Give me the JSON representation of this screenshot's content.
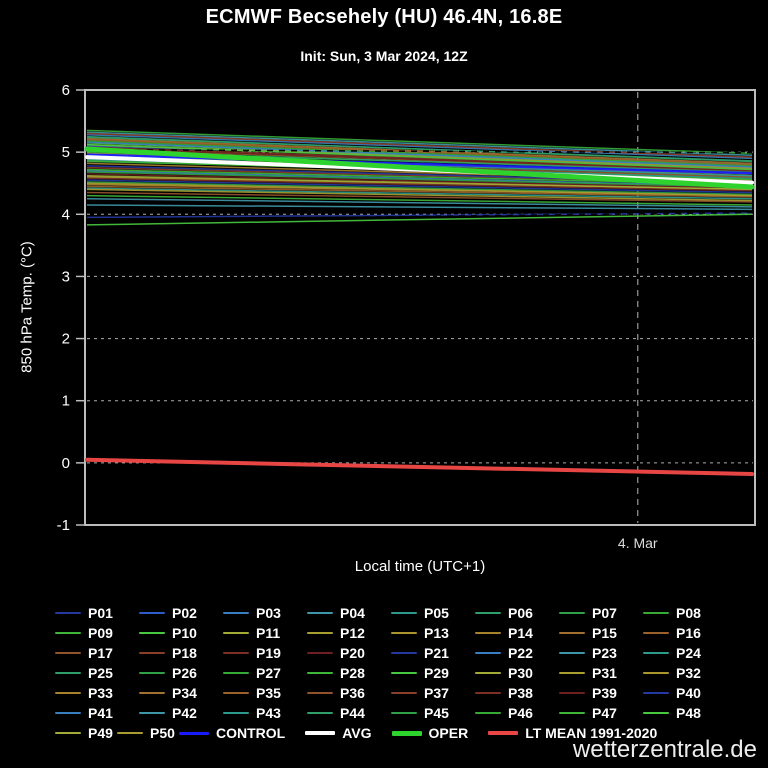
{
  "header": {
    "title": "ECMWF Becsehely (HU) 46.4N, 16.8E",
    "subtitle": "Init: Sun, 3 Mar 2024, 12Z"
  },
  "axes": {
    "xlabel": "Local time (UTC+1)",
    "ylabel": "850 hPa Temp. (°C)"
  },
  "watermark": "wetterzentrale.de",
  "colors": {
    "background": "#000000",
    "frame": "#bcbcbc",
    "grid_h": "#cccccc",
    "grid_v": "#999999",
    "text": "#ffffff",
    "xtick_text": "#dddddd"
  },
  "chart_data": {
    "type": "line",
    "title": "ECMWF Becsehely (HU) 46.4N, 16.8E",
    "subtitle": "Init: Sun, 3 Mar 2024, 12Z",
    "xlabel": "Local time (UTC+1)",
    "ylabel": "850 hPa Temp. (°C)",
    "ylim": [
      -1,
      6
    ],
    "yticks": [
      6,
      5,
      4,
      3,
      2,
      1,
      0,
      -1
    ],
    "x": [
      0,
      1
    ],
    "xticks": [
      {
        "frac": 0.825,
        "label": "4. Mar"
      }
    ],
    "grid": "dashed",
    "legend_position": "bottom",
    "series": [
      {
        "name": "P01",
        "color": "#2438a0",
        "width": 1.5,
        "values": [
          4.55,
          4.35
        ]
      },
      {
        "name": "P02",
        "color": "#2e5cc8",
        "width": 1.5,
        "values": [
          5.1,
          4.8
        ]
      },
      {
        "name": "P03",
        "color": "#3a7ec0",
        "width": 1.5,
        "values": [
          4.7,
          4.45
        ]
      },
      {
        "name": "P04",
        "color": "#3e96a8",
        "width": 1.5,
        "values": [
          5.32,
          4.95
        ]
      },
      {
        "name": "P05",
        "color": "#2e9a8e",
        "width": 1.5,
        "values": [
          4.42,
          4.25
        ]
      },
      {
        "name": "P06",
        "color": "#2f9e68",
        "width": 1.5,
        "values": [
          5.25,
          4.85
        ]
      },
      {
        "name": "P07",
        "color": "#2fa048",
        "width": 1.5,
        "values": [
          4.85,
          4.6
        ]
      },
      {
        "name": "P08",
        "color": "#36a836",
        "width": 1.5,
        "values": [
          5.0,
          4.7
        ]
      },
      {
        "name": "P09",
        "color": "#3eb438",
        "width": 1.5,
        "values": [
          4.3,
          4.15
        ]
      },
      {
        "name": "P10",
        "color": "#48c840",
        "width": 1.5,
        "values": [
          5.15,
          4.75
        ]
      },
      {
        "name": "P11",
        "color": "#a2aa38",
        "width": 1.5,
        "values": [
          4.95,
          4.65
        ]
      },
      {
        "name": "P12",
        "color": "#a89e30",
        "width": 1.5,
        "values": [
          4.6,
          4.4
        ]
      },
      {
        "name": "P13",
        "color": "#ac942e",
        "width": 1.5,
        "values": [
          5.05,
          4.7
        ]
      },
      {
        "name": "P14",
        "color": "#a8822a",
        "width": 1.5,
        "values": [
          4.48,
          4.3
        ]
      },
      {
        "name": "P15",
        "color": "#a27030",
        "width": 1.5,
        "values": [
          4.9,
          4.55
        ]
      },
      {
        "name": "P16",
        "color": "#9c602a",
        "width": 1.5,
        "values": [
          5.2,
          4.8
        ]
      },
      {
        "name": "P17",
        "color": "#92522c",
        "width": 1.5,
        "values": [
          4.35,
          4.2
        ]
      },
      {
        "name": "P18",
        "color": "#884028",
        "width": 1.5,
        "values": [
          4.75,
          4.5
        ]
      },
      {
        "name": "P19",
        "color": "#7c3024",
        "width": 1.5,
        "values": [
          5.08,
          4.72
        ]
      },
      {
        "name": "P20",
        "color": "#6c2020",
        "width": 1.5,
        "values": [
          4.65,
          4.42
        ]
      },
      {
        "name": "P21",
        "color": "#2438a0",
        "width": 1.5,
        "values": [
          3.95,
          4.02
        ]
      },
      {
        "name": "P22",
        "color": "#3a7ec0",
        "width": 1.5,
        "values": [
          5.28,
          4.9
        ]
      },
      {
        "name": "P23",
        "color": "#3e96a8",
        "width": 1.5,
        "values": [
          4.15,
          4.08
        ]
      },
      {
        "name": "P24",
        "color": "#2e9a8e",
        "width": 1.5,
        "values": [
          4.88,
          4.58
        ]
      },
      {
        "name": "P25",
        "color": "#2f9e68",
        "width": 1.5,
        "values": [
          5.02,
          4.68
        ]
      },
      {
        "name": "P26",
        "color": "#2fa048",
        "width": 1.5,
        "values": [
          4.52,
          4.32
        ]
      },
      {
        "name": "P27",
        "color": "#36a836",
        "width": 1.5,
        "values": [
          5.18,
          4.78
        ]
      },
      {
        "name": "P28",
        "color": "#3eb438",
        "width": 1.5,
        "values": [
          4.72,
          4.48
        ]
      },
      {
        "name": "P29",
        "color": "#48c840",
        "width": 1.5,
        "values": [
          3.83,
          4.0
        ]
      },
      {
        "name": "P30",
        "color": "#a2aa38",
        "width": 1.5,
        "values": [
          4.98,
          4.62
        ]
      },
      {
        "name": "P31",
        "color": "#a89e30",
        "width": 1.5,
        "values": [
          4.4,
          4.22
        ]
      },
      {
        "name": "P32",
        "color": "#ac942e",
        "width": 1.5,
        "values": [
          5.12,
          4.74
        ]
      },
      {
        "name": "P33",
        "color": "#a8822a",
        "width": 1.5,
        "values": [
          4.82,
          4.52
        ]
      },
      {
        "name": "P34",
        "color": "#a27030",
        "width": 1.5,
        "values": [
          5.22,
          4.82
        ]
      },
      {
        "name": "P35",
        "color": "#9c602a",
        "width": 1.5,
        "values": [
          4.45,
          4.28
        ]
      },
      {
        "name": "P36",
        "color": "#92522c",
        "width": 1.5,
        "values": [
          4.92,
          4.6
        ]
      },
      {
        "name": "P37",
        "color": "#884028",
        "width": 1.5,
        "values": [
          5.3,
          4.92
        ]
      },
      {
        "name": "P38",
        "color": "#7c3024",
        "width": 1.5,
        "values": [
          4.58,
          4.38
        ]
      },
      {
        "name": "P39",
        "color": "#6c2020",
        "width": 1.5,
        "values": [
          5.06,
          4.7
        ]
      },
      {
        "name": "P40",
        "color": "#2438a0",
        "width": 1.5,
        "values": [
          4.78,
          4.5
        ]
      },
      {
        "name": "P41",
        "color": "#3a7ec0",
        "width": 1.5,
        "values": [
          5.16,
          4.76
        ]
      },
      {
        "name": "P42",
        "color": "#3e96a8",
        "width": 1.5,
        "values": [
          4.25,
          4.12
        ]
      },
      {
        "name": "P43",
        "color": "#2e9a8e",
        "width": 1.5,
        "values": [
          4.95,
          4.62
        ]
      },
      {
        "name": "P44",
        "color": "#2f9e68",
        "width": 1.5,
        "values": [
          5.24,
          4.86
        ]
      },
      {
        "name": "P45",
        "color": "#2fa048",
        "width": 1.5,
        "values": [
          4.68,
          4.44
        ]
      },
      {
        "name": "P46",
        "color": "#36a836",
        "width": 1.5,
        "values": [
          5.35,
          4.98
        ]
      },
      {
        "name": "P47",
        "color": "#3eb438",
        "width": 1.5,
        "values": [
          4.86,
          4.56
        ]
      },
      {
        "name": "P48",
        "color": "#48c840",
        "width": 1.5,
        "values": [
          5.12,
          4.72
        ]
      },
      {
        "name": "P49",
        "color": "#a2aa38",
        "width": 1.5,
        "values": [
          4.62,
          4.4
        ]
      },
      {
        "name": "P50",
        "color": "#a89e30",
        "width": 1.5,
        "values": [
          4.5,
          4.3
        ]
      },
      {
        "name": "max-envelope",
        "color": "#000000",
        "width": 1.6,
        "dash": "6,6",
        "values": [
          5.04,
          4.99
        ]
      },
      {
        "name": "min-envelope",
        "color": "#000000",
        "width": 1.6,
        "dash": "6,6",
        "values": [
          3.9,
          4.03
        ]
      },
      {
        "name": "CONTROL",
        "color": "#1a1aff",
        "width": 2.5,
        "values": [
          4.96,
          4.66
        ]
      },
      {
        "name": "AVG",
        "color": "#ffffff",
        "width": 4,
        "values": [
          4.92,
          4.51
        ]
      },
      {
        "name": "OPER",
        "color": "#2ed32e",
        "width": 5,
        "values": [
          5.05,
          4.44
        ]
      },
      {
        "name": "LT MEAN 1991-2020",
        "color": "#e84545",
        "width": 4,
        "values": [
          0.05,
          -0.18
        ]
      }
    ]
  },
  "legend": {
    "rows": [
      [
        "P01",
        "P02",
        "P03",
        "P04",
        "P05",
        "P06",
        "P07",
        "P08"
      ],
      [
        "P09",
        "P10",
        "P11",
        "P12",
        "P13",
        "P14",
        "P15",
        "P16"
      ],
      [
        "P17",
        "P18",
        "P19",
        "P20",
        "P21",
        "P22",
        "P23",
        "P24"
      ],
      [
        "P25",
        "P26",
        "P27",
        "P28",
        "P29",
        "P30",
        "P31",
        "P32"
      ],
      [
        "P33",
        "P34",
        "P35",
        "P36",
        "P37",
        "P38",
        "P39",
        "P40"
      ],
      [
        "P41",
        "P42",
        "P43",
        "P44",
        "P45",
        "P46",
        "P47",
        "P48"
      ],
      [
        "P49",
        "P50",
        "CONTROL",
        "AVG",
        "OPER",
        "LT MEAN 1991-2020"
      ]
    ]
  }
}
